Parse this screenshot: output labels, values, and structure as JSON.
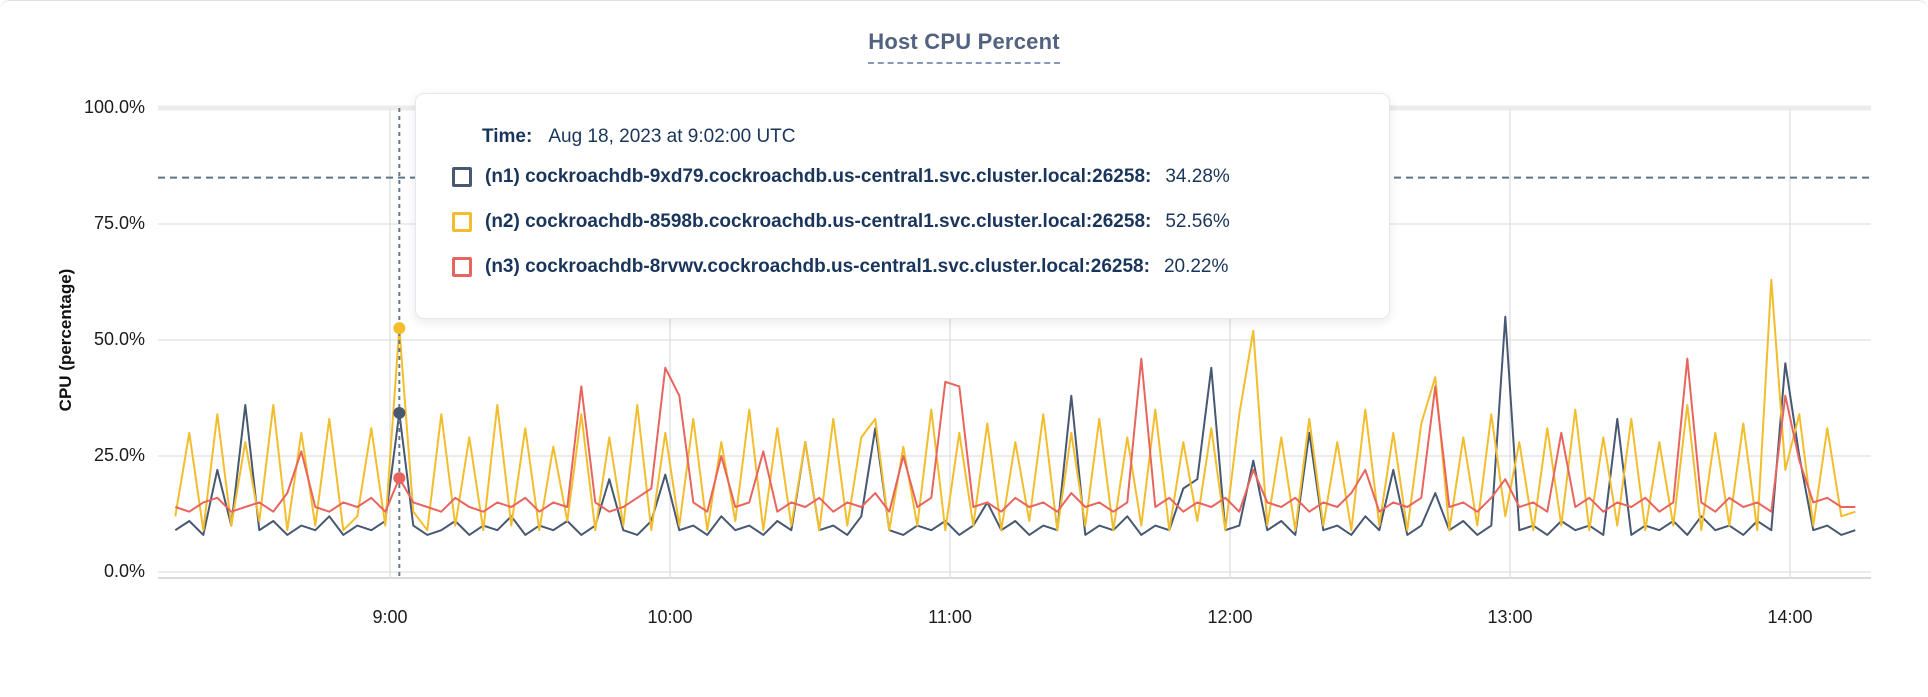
{
  "page": {
    "title": "Host CPU Percent"
  },
  "tooltip": {
    "time_label": "Time:",
    "time_value": "Aug 18, 2023 at 9:02:00 UTC",
    "rows": [
      {
        "id": "n1",
        "name": "(n1) cockroachdb-9xd79.cockroachdb.us-central1.svc.cluster.local:26258:",
        "value": "34.28%",
        "color": "#475872"
      },
      {
        "id": "n2",
        "name": "(n2) cockroachdb-8598b.cockroachdb.us-central1.svc.cluster.local:26258:",
        "value": "52.56%",
        "color": "#F2BE2D"
      },
      {
        "id": "n3",
        "name": "(n3) cockroachdb-8rvwv.cockroachdb.us-central1.svc.cluster.local:26258:",
        "value": "20.22%",
        "color": "#E8655F"
      }
    ]
  },
  "chart_data": {
    "type": "line",
    "title": "Host CPU Percent",
    "xlabel": "",
    "ylabel": "CPU (percentage)",
    "ylim": [
      0,
      100
    ],
    "grid": true,
    "legend_position": "tooltip-overlay",
    "y_ticks": [
      {
        "value": 100,
        "label": "100.0%"
      },
      {
        "value": 75,
        "label": "75.0%"
      },
      {
        "value": 50,
        "label": "50.0%"
      },
      {
        "value": 25,
        "label": "25.0%"
      },
      {
        "value": 0,
        "label": "0.0%"
      }
    ],
    "x_ticks": [
      {
        "minute": 540,
        "label": "9:00"
      },
      {
        "minute": 600,
        "label": "10:00"
      },
      {
        "minute": 660,
        "label": "11:00"
      },
      {
        "minute": 720,
        "label": "12:00"
      },
      {
        "minute": 780,
        "label": "13:00"
      },
      {
        "minute": 840,
        "label": "14:00"
      }
    ],
    "x_start_minute": 494,
    "x_step_minutes": 3,
    "threshold_percent": 85,
    "hover_point": {
      "minute": 542,
      "time_label": "Aug 18, 2023 at 9:02:00 UTC",
      "values": {
        "n1": 34.28,
        "n2": 52.56,
        "n3": 20.22
      }
    },
    "series": [
      {
        "id": "n1",
        "name": "(n1) cockroachdb-9xd79.cockroachdb.us-central1.svc.cluster.local:26258",
        "color": "#475872",
        "values": [
          9,
          11,
          8,
          22,
          10,
          36,
          9,
          11,
          8,
          10,
          9,
          12,
          8,
          10,
          9,
          11,
          34.28,
          10,
          8,
          9,
          11,
          8,
          10,
          9,
          12,
          8,
          10,
          9,
          11,
          8,
          10,
          20,
          9,
          8,
          11,
          21,
          9,
          10,
          8,
          12,
          9,
          10,
          8,
          11,
          9,
          28,
          9,
          10,
          8,
          12,
          31,
          9,
          8,
          10,
          9,
          11,
          8,
          10,
          15,
          9,
          11,
          8,
          10,
          9,
          38,
          8,
          10,
          9,
          12,
          8,
          10,
          9,
          18,
          20,
          44,
          9,
          10,
          24,
          9,
          11,
          8,
          30,
          9,
          10,
          8,
          12,
          9,
          22,
          8,
          10,
          17,
          9,
          11,
          8,
          10,
          55,
          9,
          10,
          8,
          11,
          9,
          10,
          8,
          33,
          8,
          10,
          9,
          11,
          8,
          12,
          9,
          10,
          8,
          11,
          9,
          45,
          25,
          9,
          10,
          8,
          9
        ]
      },
      {
        "id": "n2",
        "name": "(n2) cockroachdb-8598b.cockroachdb.us-central1.svc.cluster.local:26258",
        "color": "#F2BE2D",
        "values": [
          12,
          30,
          9,
          34,
          10,
          28,
          11,
          36,
          9,
          30,
          10,
          33,
          9,
          12,
          31,
          10,
          52.56,
          13,
          9,
          34,
          10,
          29,
          9,
          36,
          10,
          31,
          9,
          27,
          11,
          34,
          9,
          29,
          10,
          36,
          9,
          30,
          10,
          33,
          9,
          28,
          11,
          35,
          9,
          31,
          10,
          28,
          9,
          33,
          10,
          29,
          33,
          9,
          27,
          10,
          35,
          9,
          30,
          10,
          32,
          9,
          28,
          11,
          34,
          9,
          30,
          10,
          33,
          9,
          29,
          10,
          35,
          9,
          28,
          11,
          31,
          9,
          34,
          52,
          10,
          29,
          9,
          33,
          10,
          28,
          9,
          35,
          10,
          30,
          9,
          32,
          42,
          9,
          29,
          10,
          34,
          12,
          28,
          9,
          31,
          10,
          35,
          9,
          29,
          10,
          33,
          9,
          28,
          10,
          36,
          9,
          30,
          10,
          32,
          9,
          63,
          22,
          34,
          10,
          31,
          12,
          13
        ]
      },
      {
        "id": "n3",
        "name": "(n3) cockroachdb-8rvwv.cockroachdb.us-central1.svc.cluster.local:26258",
        "color": "#E8655F",
        "values": [
          14,
          13,
          15,
          16,
          13,
          14,
          15,
          13,
          17,
          26,
          14,
          13,
          15,
          14,
          16,
          13,
          20.22,
          15,
          14,
          13,
          16,
          14,
          13,
          15,
          14,
          16,
          13,
          15,
          14,
          40,
          15,
          13,
          14,
          16,
          18,
          44,
          38,
          15,
          13,
          25,
          14,
          15,
          26,
          13,
          15,
          14,
          16,
          13,
          15,
          14,
          17,
          13,
          25,
          14,
          16,
          41,
          40,
          14,
          15,
          13,
          16,
          14,
          15,
          13,
          17,
          14,
          15,
          13,
          15,
          46,
          14,
          16,
          13,
          15,
          14,
          16,
          13,
          22,
          15,
          14,
          16,
          13,
          15,
          14,
          17,
          22,
          13,
          15,
          14,
          16,
          40,
          14,
          15,
          13,
          16,
          20,
          14,
          15,
          13,
          30,
          14,
          16,
          13,
          15,
          14,
          16,
          13,
          15,
          46,
          15,
          13,
          16,
          14,
          15,
          13,
          38,
          24,
          15,
          16,
          14,
          14
        ]
      }
    ]
  }
}
